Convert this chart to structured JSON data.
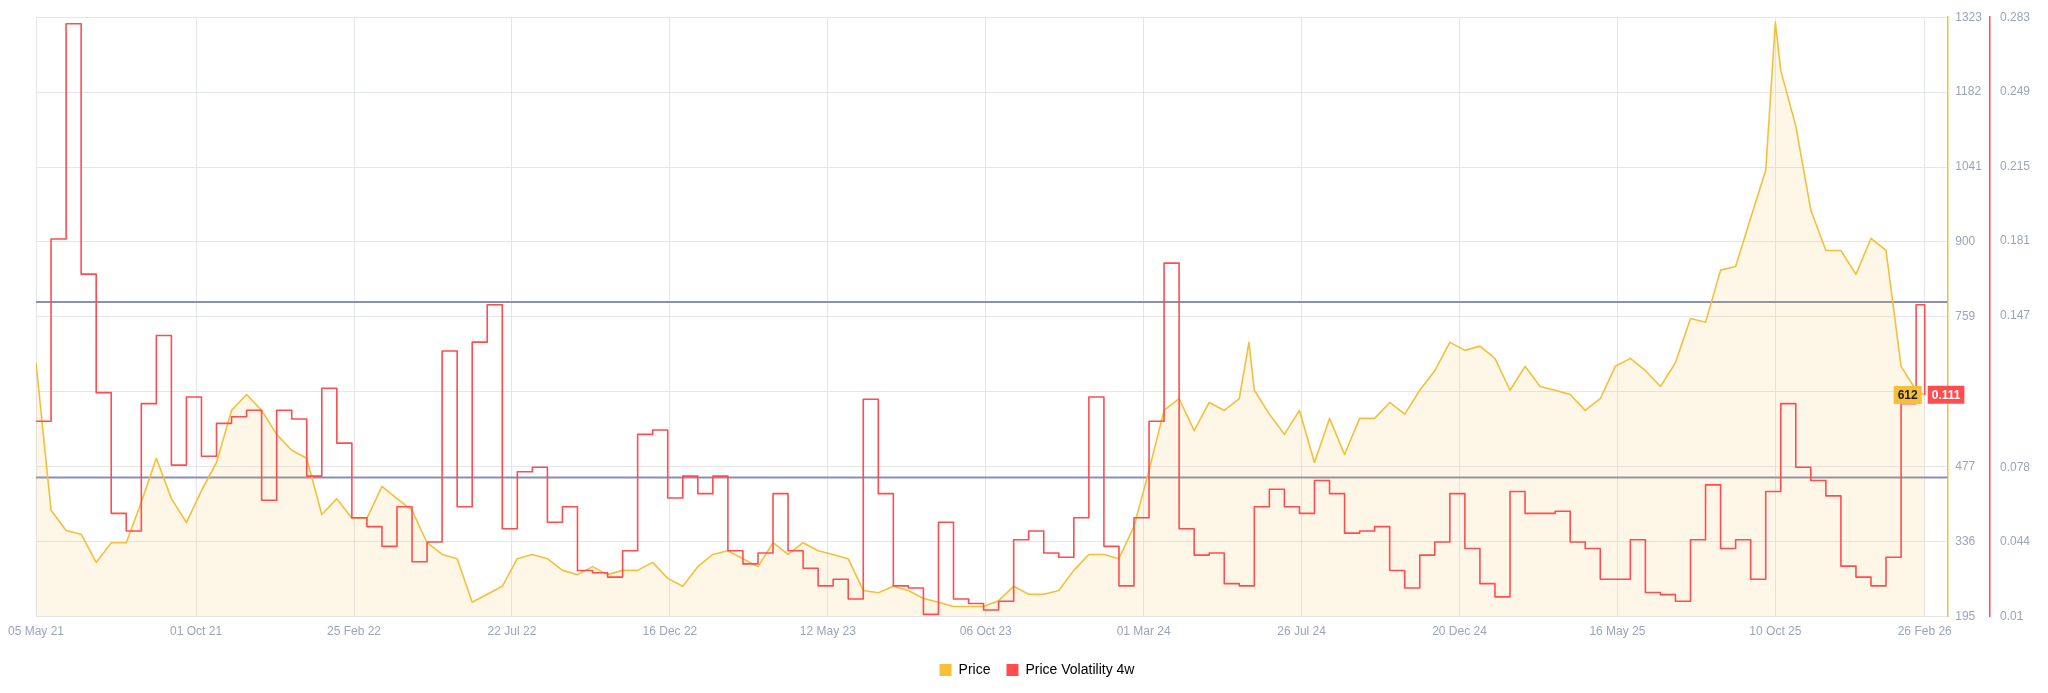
{
  "chart_data": {
    "type": "area",
    "x": [
      "2021-05-05",
      "2021-05-19",
      "2021-06-02",
      "2021-06-16",
      "2021-06-30",
      "2021-07-14",
      "2021-07-28",
      "2021-08-11",
      "2021-08-25",
      "2021-09-08",
      "2021-09-22",
      "2021-10-06",
      "2021-10-20",
      "2021-11-03",
      "2021-11-17",
      "2021-12-01",
      "2021-12-15",
      "2021-12-29",
      "2022-01-12",
      "2022-01-26",
      "2022-02-09",
      "2022-02-23",
      "2022-03-09",
      "2022-03-23",
      "2022-04-06",
      "2022-04-20",
      "2022-05-04",
      "2022-05-18",
      "2022-06-01",
      "2022-06-15",
      "2022-06-29",
      "2022-07-13",
      "2022-07-27",
      "2022-08-10",
      "2022-08-24",
      "2022-09-07",
      "2022-09-21",
      "2022-10-05",
      "2022-10-19",
      "2022-11-02",
      "2022-11-16",
      "2022-11-30",
      "2022-12-14",
      "2022-12-28",
      "2023-01-11",
      "2023-01-25",
      "2023-02-08",
      "2023-02-22",
      "2023-03-08",
      "2023-03-22",
      "2023-04-05",
      "2023-04-19",
      "2023-05-03",
      "2023-05-17",
      "2023-05-31",
      "2023-06-14",
      "2023-06-28",
      "2023-07-12",
      "2023-07-26",
      "2023-08-09",
      "2023-08-23",
      "2023-09-06",
      "2023-09-20",
      "2023-10-04",
      "2023-10-18",
      "2023-11-01",
      "2023-11-15",
      "2023-11-29",
      "2023-12-13",
      "2023-12-27",
      "2024-01-10",
      "2024-01-24",
      "2024-02-07",
      "2024-02-21",
      "2024-03-06",
      "2024-03-20",
      "2024-04-03",
      "2024-04-17",
      "2024-05-01",
      "2024-05-15",
      "2024-05-29",
      "2024-06-12",
      "2024-06-26",
      "2024-07-10",
      "2024-07-24",
      "2024-08-07",
      "2024-08-21",
      "2024-09-04",
      "2024-09-18",
      "2024-10-02",
      "2024-10-16",
      "2024-10-30",
      "2024-11-13",
      "2024-11-27",
      "2024-12-11",
      "2024-12-25",
      "2025-01-08",
      "2025-01-22",
      "2025-02-05",
      "2025-02-19",
      "2025-03-05",
      "2025-03-19",
      "2025-04-02",
      "2025-04-16",
      "2025-04-30",
      "2025-05-14",
      "2025-05-28",
      "2025-06-11",
      "2025-06-25",
      "2025-07-09",
      "2025-07-23",
      "2025-08-06",
      "2025-08-20",
      "2025-09-03",
      "2025-09-17",
      "2025-10-01",
      "2025-10-15",
      "2025-10-29",
      "2025-11-12",
      "2025-11-26",
      "2025-12-10",
      "2025-12-24",
      "2026-01-07",
      "2026-01-21",
      "2026-02-04",
      "2026-02-18",
      "2026-02-26"
    ],
    "xlim": [
      "2021-05-05",
      "2026-03-19"
    ],
    "xticks": [
      {
        "value": "2021-05-05",
        "label": "05 May 21"
      },
      {
        "value": "2021-10-01",
        "label": "01 Oct 21"
      },
      {
        "value": "2022-02-25",
        "label": "25 Feb 22"
      },
      {
        "value": "2022-07-22",
        "label": "22 Jul 22"
      },
      {
        "value": "2022-12-16",
        "label": "16 Dec 22"
      },
      {
        "value": "2023-05-12",
        "label": "12 May 23"
      },
      {
        "value": "2023-10-06",
        "label": "06 Oct 23"
      },
      {
        "value": "2024-03-01",
        "label": "01 Mar 24"
      },
      {
        "value": "2024-07-26",
        "label": "26 Jul 24"
      },
      {
        "value": "2024-12-20",
        "label": "20 Dec 24"
      },
      {
        "value": "2025-05-16",
        "label": "16 May 25"
      },
      {
        "value": "2025-10-10",
        "label": "10 Oct 25"
      },
      {
        "value": "2026-02-26",
        "label": "26 Feb 26"
      }
    ],
    "ylim": [
      195,
      1323
    ],
    "yticks": [
      195,
      336,
      477,
      {
        "value": 618,
        "label": null
      },
      759,
      900,
      1041,
      1182,
      1323
    ],
    "y2lim": [
      0.01,
      0.283
    ],
    "y2ticks": [
      0.01,
      0.044,
      0.078,
      0.147,
      0.181,
      0.215,
      0.249,
      0.283
    ],
    "grid": true,
    "legend": "bottom",
    "marker": "none",
    "ref_lines": [
      {
        "axis": "y",
        "value": 787,
        "color": "#8a8fb3"
      },
      {
        "axis": "y",
        "value": 457,
        "color": "#8a8fb3"
      }
    ],
    "series": [
      {
        "name": "Price",
        "color": "#f5bf3a",
        "x": [
          "2021-05-05",
          "2021-05-19",
          "2021-06-02",
          "2021-06-16",
          "2021-06-30",
          "2021-07-14",
          "2021-07-28",
          "2021-08-11",
          "2021-08-25",
          "2021-09-08",
          "2021-09-22",
          "2021-10-06",
          "2021-10-20",
          "2021-11-03",
          "2021-11-17",
          "2021-12-01",
          "2021-12-15",
          "2021-12-29",
          "2022-01-12",
          "2022-01-26",
          "2022-02-09",
          "2022-02-23",
          "2022-03-09",
          "2022-03-23",
          "2022-04-06",
          "2022-04-20",
          "2022-05-04",
          "2022-05-18",
          "2022-06-01",
          "2022-06-15",
          "2022-06-29",
          "2022-07-13",
          "2022-07-27",
          "2022-08-10",
          "2022-08-24",
          "2022-09-07",
          "2022-09-21",
          "2022-10-05",
          "2022-10-19",
          "2022-11-02",
          "2022-11-16",
          "2022-11-30",
          "2022-12-14",
          "2022-12-28",
          "2023-01-11",
          "2023-01-25",
          "2023-02-08",
          "2023-02-22",
          "2023-03-08",
          "2023-03-22",
          "2023-04-05",
          "2023-04-19",
          "2023-05-03",
          "2023-05-17",
          "2023-05-31",
          "2023-06-14",
          "2023-06-28",
          "2023-07-12",
          "2023-07-26",
          "2023-08-09",
          "2023-08-23",
          "2023-09-06",
          "2023-09-20",
          "2023-10-04",
          "2023-10-18",
          "2023-11-01",
          "2023-11-15",
          "2023-11-29",
          "2023-12-13",
          "2023-12-27",
          "2024-01-10",
          "2024-01-24",
          "2024-02-07",
          "2024-02-21",
          "2024-03-06",
          "2024-03-20",
          "2024-04-03",
          "2024-04-17",
          "2024-05-01",
          "2024-05-15",
          "2024-05-29",
          "2024-06-07",
          "2024-06-12",
          "2024-06-26",
          "2024-07-10",
          "2024-07-24",
          "2024-08-07",
          "2024-08-21",
          "2024-09-04",
          "2024-09-18",
          "2024-10-02",
          "2024-10-16",
          "2024-10-30",
          "2024-11-13",
          "2024-11-27",
          "2024-12-11",
          "2024-12-25",
          "2025-01-08",
          "2025-01-22",
          "2025-02-05",
          "2025-02-19",
          "2025-03-05",
          "2025-03-19",
          "2025-04-02",
          "2025-04-16",
          "2025-04-30",
          "2025-05-14",
          "2025-05-28",
          "2025-06-11",
          "2025-06-25",
          "2025-07-09",
          "2025-07-23",
          "2025-08-06",
          "2025-08-20",
          "2025-09-03",
          "2025-09-17",
          "2025-10-01",
          "2025-10-10",
          "2025-10-15",
          "2025-10-29",
          "2025-11-12",
          "2025-11-26",
          "2025-12-10",
          "2025-12-24",
          "2026-01-07",
          "2026-01-21",
          "2026-02-04",
          "2026-02-18",
          "2026-02-26"
        ],
        "values": [
          673,
          395,
          357,
          350,
          297,
          334,
          334,
          410,
          493,
          417,
          372,
          432,
          485,
          583,
          613,
          583,
          538,
          508,
          493,
          387,
          417,
          380,
          380,
          440,
          417,
          395,
          334,
          312,
          304,
          222,
          237,
          252,
          304,
          312,
          304,
          282,
          274,
          289,
          274,
          282,
          282,
          297,
          267,
          252,
          289,
          312,
          319,
          304,
          289,
          334,
          312,
          334,
          319,
          312,
          304,
          244,
          240,
          252,
          244,
          229,
          222,
          214,
          214,
          214,
          225,
          252,
          237,
          237,
          244,
          282,
          312,
          312,
          304,
          365,
          470,
          583,
          605,
          545,
          598,
          583,
          605,
          711,
          621,
          576,
          538,
          583,
          485,
          568,
          500,
          568,
          568,
          598,
          576,
          621,
          658,
          711,
          696,
          704,
          681,
          621,
          666,
          628,
          621,
          613,
          583,
          605,
          666,
          681,
          658,
          628,
          673,
          756,
          749,
          847,
          854,
          945,
          1035,
          1314,
          1223,
          1118,
          960,
          884,
          884,
          839,
          907,
          884,
          666,
          621,
          612
        ],
        "value_labels": [
          null,
          null,
          null,
          null,
          null,
          null,
          null,
          null,
          null,
          null,
          null,
          null,
          null,
          null,
          null,
          null,
          null,
          null,
          null,
          null,
          null,
          null,
          null,
          null,
          null,
          null,
          null,
          null,
          null,
          null,
          null,
          null,
          null,
          null,
          null,
          null,
          null,
          null,
          null,
          null,
          null,
          null,
          null,
          null,
          null,
          null,
          null,
          null,
          null,
          null,
          null,
          null,
          null,
          null,
          null,
          null,
          null,
          null,
          null,
          null,
          null,
          null,
          null,
          null,
          null,
          null,
          null,
          null,
          null,
          null,
          null,
          null,
          null,
          null,
          null,
          null,
          null,
          null,
          null,
          null,
          null,
          null,
          null,
          null,
          null,
          null,
          null,
          null,
          null,
          null,
          null,
          null,
          null,
          null,
          null,
          null,
          null,
          null,
          null,
          null,
          null,
          null,
          null,
          null,
          null,
          null,
          null,
          null,
          null,
          null,
          null,
          null,
          null,
          null,
          null,
          null,
          null,
          null,
          null,
          null,
          null,
          null,
          null,
          null,
          null,
          null,
          null,
          null,
          "612"
        ]
      },
      {
        "name": "Price Volatility 4w",
        "type": "step",
        "axis": "y2",
        "color": "#ff4d4f",
        "values": [
          0.099,
          0.182,
          0.28,
          0.166,
          0.112,
          0.057,
          0.049,
          0.107,
          0.138,
          0.079,
          0.11,
          0.083,
          0.098,
          0.101,
          0.104,
          0.063,
          0.104,
          0.1,
          0.074,
          0.114,
          0.089,
          0.055,
          0.051,
          0.042,
          0.06,
          0.035,
          0.044,
          0.131,
          0.06,
          0.135,
          0.152,
          0.05,
          0.076,
          0.078,
          0.053,
          0.06,
          0.031,
          0.03,
          0.028,
          0.04,
          0.093,
          0.095,
          0.064,
          0.074,
          0.066,
          0.074,
          0.04,
          0.034,
          0.039,
          0.066,
          0.04,
          0.032,
          0.024,
          0.027,
          0.018,
          0.109,
          0.066,
          0.024,
          0.023,
          0.011,
          0.053,
          0.018,
          0.016,
          0.013,
          0.017,
          0.045,
          0.049,
          0.039,
          0.037,
          0.055,
          0.11,
          0.042,
          0.024,
          0.055,
          0.099,
          0.171,
          0.05,
          0.038,
          0.039,
          0.025,
          0.024,
          0.06,
          0.068,
          0.06,
          0.057,
          0.072,
          0.066,
          0.048,
          0.049,
          0.051,
          0.031,
          0.023,
          0.038,
          0.044,
          0.066,
          0.041,
          0.025,
          0.019,
          0.067,
          0.057,
          0.057,
          0.058,
          0.044,
          0.041,
          0.027,
          0.027,
          0.045,
          0.021,
          0.02,
          0.017,
          0.045,
          0.07,
          0.041,
          0.045,
          0.027,
          0.067,
          0.107,
          0.078,
          0.072,
          0.065,
          0.033,
          0.028,
          0.024,
          0.037,
          0.107,
          0.152,
          0.111
        ],
        "value_labels": [
          null,
          null,
          null,
          null,
          null,
          null,
          null,
          null,
          null,
          null,
          null,
          null,
          null,
          null,
          null,
          null,
          null,
          null,
          null,
          null,
          null,
          null,
          null,
          null,
          null,
          null,
          null,
          null,
          null,
          null,
          null,
          null,
          null,
          null,
          null,
          null,
          null,
          null,
          null,
          null,
          null,
          null,
          null,
          null,
          null,
          null,
          null,
          null,
          null,
          null,
          null,
          null,
          null,
          null,
          null,
          null,
          null,
          null,
          null,
          null,
          null,
          null,
          null,
          null,
          null,
          null,
          null,
          null,
          null,
          null,
          null,
          null,
          null,
          null,
          null,
          null,
          null,
          null,
          null,
          null,
          null,
          null,
          null,
          null,
          null,
          null,
          null,
          null,
          null,
          null,
          null,
          null,
          null,
          null,
          null,
          null,
          null,
          null,
          null,
          null,
          null,
          null,
          null,
          null,
          null,
          null,
          null,
          null,
          null,
          null,
          null,
          null,
          null,
          null,
          null,
          null,
          null,
          null,
          null,
          null,
          null,
          null,
          null,
          null,
          null,
          null,
          "0.111"
        ]
      }
    ]
  }
}
